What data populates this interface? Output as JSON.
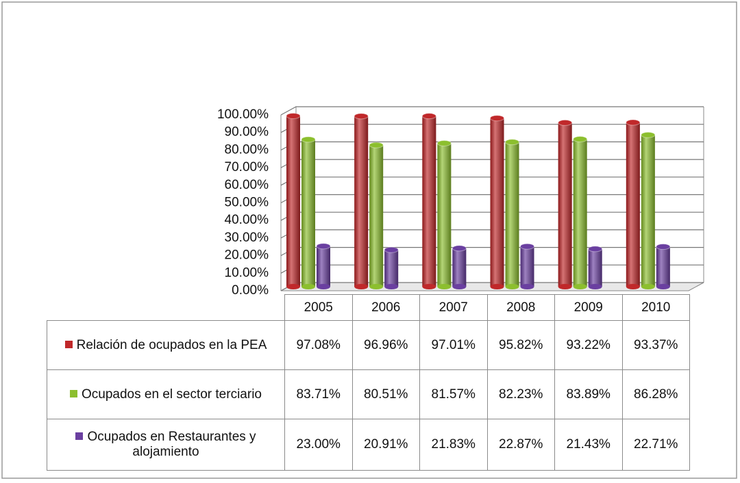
{
  "chart_data": {
    "type": "bar3d",
    "categories": [
      "2005",
      "2006",
      "2007",
      "2008",
      "2009",
      "2010"
    ],
    "series": [
      {
        "name": "Relación de ocupados en la PEA",
        "color": "#c0282a",
        "values": [
          97.08,
          96.96,
          97.01,
          95.82,
          93.22,
          93.37
        ],
        "value_labels": [
          "97.08%",
          "96.96%",
          "97.01%",
          "95.82%",
          "93.22%",
          "93.37%"
        ]
      },
      {
        "name": "Ocupados en el sector terciario",
        "color": "#8cbf2e",
        "values": [
          83.71,
          80.51,
          81.57,
          82.23,
          83.89,
          86.28
        ],
        "value_labels": [
          "83.71%",
          "80.51%",
          "81.57%",
          "82.23%",
          "83.89%",
          "86.28%"
        ]
      },
      {
        "name": "Ocupados en Restaurantes y alojamiento",
        "color": "#6a3fa0",
        "values": [
          23.0,
          20.91,
          21.83,
          22.87,
          21.43,
          22.71
        ],
        "value_labels": [
          "23.00%",
          "20.91%",
          "21.83%",
          "22.87%",
          "21.43%",
          "22.71%"
        ]
      }
    ],
    "ylim": [
      0,
      100
    ],
    "yticks": [
      {
        "value": 0,
        "label": "0.00%"
      },
      {
        "value": 10,
        "label": "10.00%"
      },
      {
        "value": 20,
        "label": "20.00%"
      },
      {
        "value": 30,
        "label": "30.00%"
      },
      {
        "value": 40,
        "label": "40.00%"
      },
      {
        "value": 50,
        "label": "50.00%"
      },
      {
        "value": 60,
        "label": "60.00%"
      },
      {
        "value": 70,
        "label": "70.00%"
      },
      {
        "value": 80,
        "label": "80.00%"
      },
      {
        "value": 90,
        "label": "90.00%"
      },
      {
        "value": 100,
        "label": "100.00%"
      }
    ],
    "grid": true
  }
}
